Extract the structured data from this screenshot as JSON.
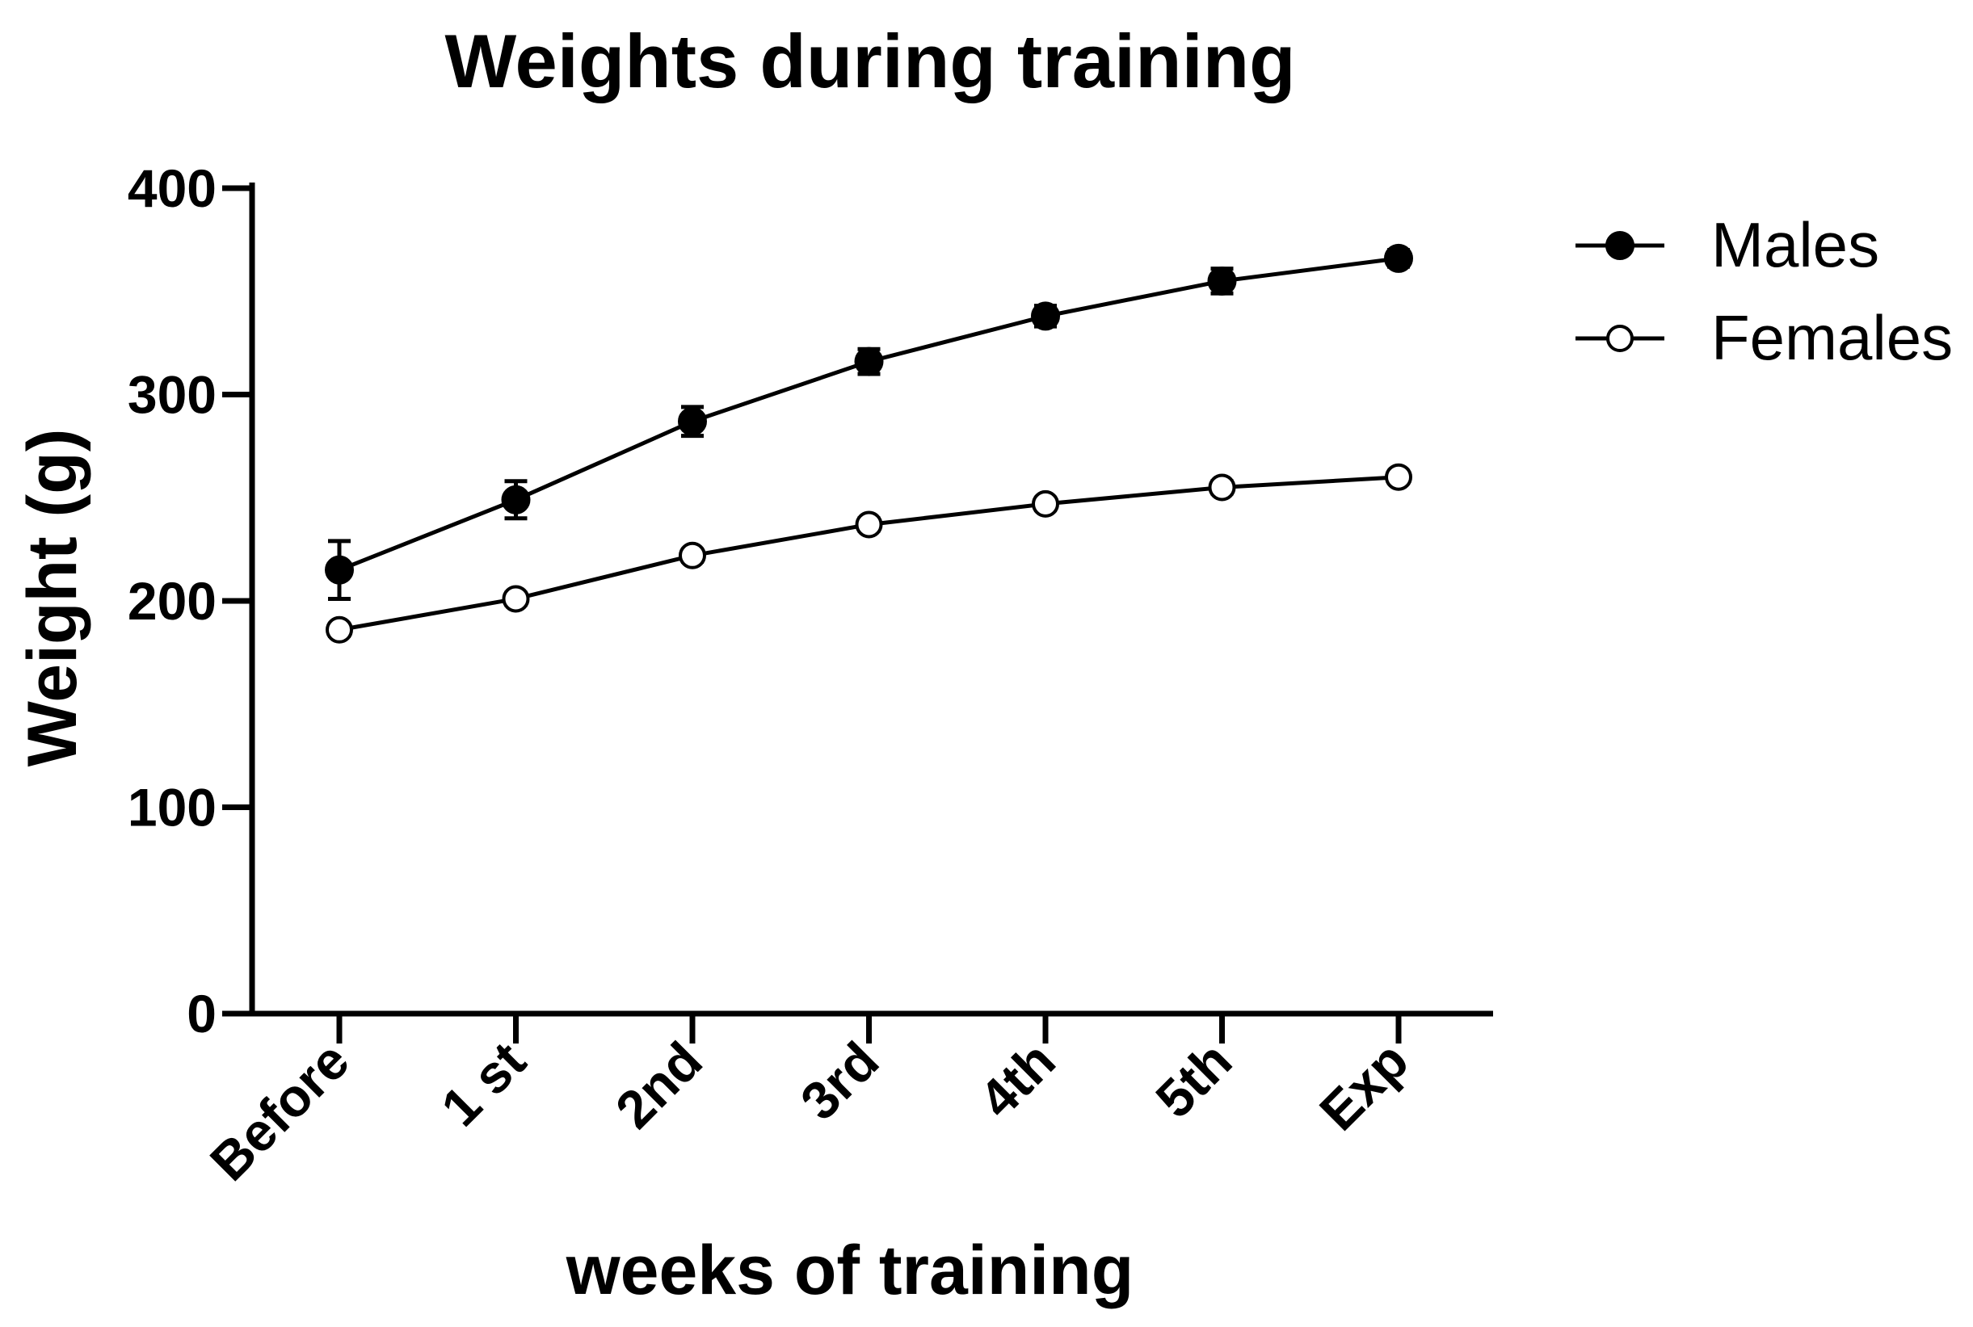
{
  "chart_data": {
    "type": "line",
    "title": "Weights during training",
    "xlabel": "weeks of training",
    "ylabel": "Weight (g)",
    "categories": [
      "Before",
      "1 st",
      "2nd",
      "3rd",
      "4th",
      "5th",
      "Exp"
    ],
    "ylim": [
      0,
      400
    ],
    "yticks": [
      0,
      100,
      200,
      300,
      400
    ],
    "grid": false,
    "legend_position": "top-right",
    "series": [
      {
        "name": "Males",
        "marker": "filled-circle",
        "values": [
          215,
          249,
          287,
          316,
          338,
          355,
          366
        ],
        "errors": [
          14,
          9,
          7,
          6,
          5,
          6,
          4
        ]
      },
      {
        "name": "Females",
        "marker": "open-circle",
        "values": [
          186,
          201,
          222,
          237,
          247,
          255,
          260
        ],
        "errors": [
          3,
          3,
          3,
          3,
          3,
          3,
          3
        ]
      }
    ]
  }
}
